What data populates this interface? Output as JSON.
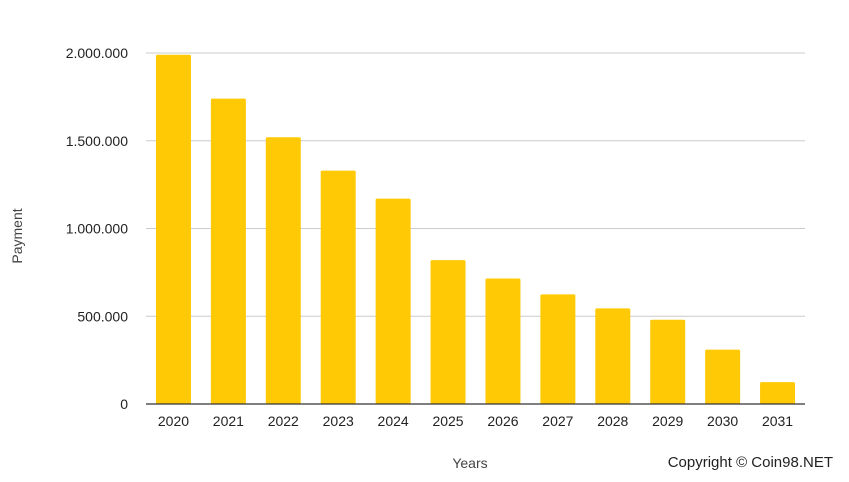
{
  "chart_data": {
    "type": "bar",
    "categories": [
      "2020",
      "2021",
      "2022",
      "2023",
      "2024",
      "2025",
      "2026",
      "2027",
      "2028",
      "2029",
      "2030",
      "2031"
    ],
    "values": [
      1990000,
      1740000,
      1520000,
      1330000,
      1170000,
      820000,
      715000,
      625000,
      545000,
      480000,
      310000,
      125000
    ],
    "title": "",
    "xlabel": "Years",
    "ylabel": "Payment",
    "ylim": [
      0,
      2000000
    ],
    "yticks": [
      0,
      500000,
      1000000,
      1500000,
      2000000
    ],
    "ytick_labels": [
      "0",
      "500.000",
      "1.000.000",
      "1.500.000",
      "2.000.000"
    ],
    "grid": true,
    "bar_color": "#FFCA05",
    "grid_color": "#CCCCCC"
  },
  "footer": {
    "copyright": "Copyright © Coin98.NET"
  }
}
